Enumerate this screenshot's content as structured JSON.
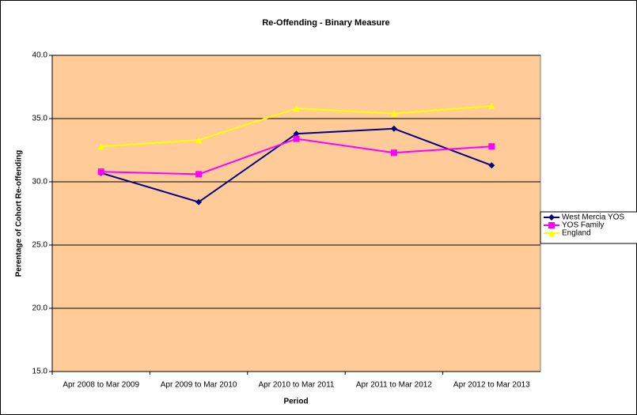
{
  "chart_data": {
    "type": "line",
    "title": "Re-Offending - Binary Measure",
    "x_label": "Period",
    "y_label": "Perentage of Cohort Re-offending",
    "categories": [
      "Apr 2008 to Mar 2009",
      "Apr 2009 to Mar 2010",
      "Apr 2010 to Mar 2011",
      "Apr 2011 to Mar 2012",
      "Apr 2012 to Mar 2013"
    ],
    "series": [
      {
        "name": "West Mercia YOS",
        "color": "#000080",
        "marker": "diamond",
        "values": [
          30.7,
          28.4,
          33.8,
          34.2,
          31.3
        ]
      },
      {
        "name": "YOS Family",
        "color": "#ff00ff",
        "marker": "square",
        "values": [
          30.8,
          30.6,
          33.4,
          32.3,
          32.8
        ]
      },
      {
        "name": "England",
        "color": "#ffff00",
        "marker": "triangle",
        "values": [
          32.8,
          33.3,
          35.8,
          35.4,
          36.0
        ]
      }
    ],
    "ylim": [
      15,
      40
    ],
    "yticks": [
      {
        "value": 15,
        "label": "15.0"
      },
      {
        "value": 20,
        "label": "20.0"
      },
      {
        "value": 25,
        "label": "25.0"
      },
      {
        "value": 30,
        "label": "30.0"
      },
      {
        "value": 35,
        "label": "35.0"
      },
      {
        "value": 40,
        "label": "40.0"
      }
    ],
    "grid": true,
    "legend": "right",
    "plot_background": "#ffcc99"
  }
}
